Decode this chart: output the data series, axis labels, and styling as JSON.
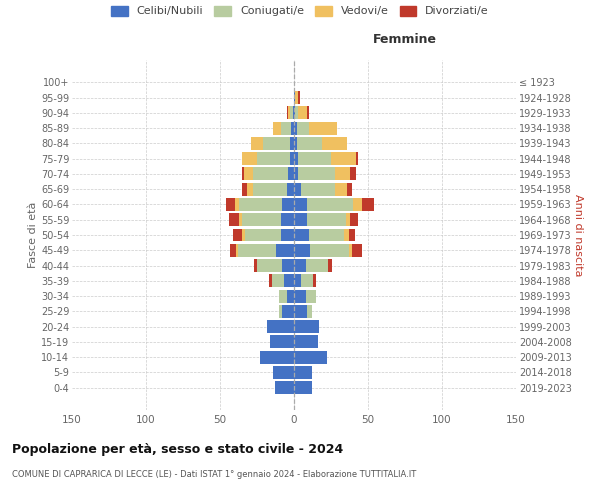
{
  "age_groups": [
    "0-4",
    "5-9",
    "10-14",
    "15-19",
    "20-24",
    "25-29",
    "30-34",
    "35-39",
    "40-44",
    "45-49",
    "50-54",
    "55-59",
    "60-64",
    "65-69",
    "70-74",
    "75-79",
    "80-84",
    "85-89",
    "90-94",
    "95-99",
    "100+"
  ],
  "birth_years": [
    "2019-2023",
    "2014-2018",
    "2009-2013",
    "2004-2008",
    "1999-2003",
    "1994-1998",
    "1989-1993",
    "1984-1988",
    "1979-1983",
    "1974-1978",
    "1969-1973",
    "1964-1968",
    "1959-1963",
    "1954-1958",
    "1949-1953",
    "1944-1948",
    "1939-1943",
    "1934-1938",
    "1929-1933",
    "1924-1928",
    "≤ 1923"
  ],
  "males": {
    "celibi": [
      13,
      14,
      23,
      16,
      18,
      8,
      5,
      7,
      8,
      12,
      9,
      9,
      8,
      5,
      4,
      3,
      3,
      2,
      1,
      0,
      0
    ],
    "coniugati": [
      0,
      0,
      0,
      0,
      0,
      2,
      5,
      8,
      17,
      26,
      24,
      26,
      29,
      23,
      24,
      22,
      18,
      7,
      2,
      0,
      0
    ],
    "vedove": [
      0,
      0,
      0,
      0,
      0,
      0,
      0,
      0,
      0,
      1,
      2,
      2,
      3,
      4,
      6,
      10,
      8,
      5,
      1,
      0,
      0
    ],
    "divorziati": [
      0,
      0,
      0,
      0,
      0,
      0,
      0,
      2,
      2,
      4,
      6,
      7,
      6,
      3,
      1,
      0,
      0,
      0,
      1,
      0,
      0
    ]
  },
  "females": {
    "nubili": [
      12,
      12,
      22,
      16,
      17,
      9,
      8,
      5,
      8,
      11,
      10,
      9,
      9,
      5,
      3,
      3,
      2,
      2,
      1,
      1,
      0
    ],
    "coniugate": [
      0,
      0,
      0,
      0,
      0,
      3,
      7,
      8,
      15,
      26,
      24,
      26,
      31,
      23,
      25,
      22,
      17,
      8,
      2,
      0,
      0
    ],
    "vedove": [
      0,
      0,
      0,
      0,
      0,
      0,
      0,
      0,
      0,
      2,
      3,
      3,
      6,
      8,
      10,
      17,
      17,
      19,
      6,
      2,
      0
    ],
    "divorziate": [
      0,
      0,
      0,
      0,
      0,
      0,
      0,
      2,
      3,
      7,
      4,
      5,
      8,
      3,
      4,
      1,
      0,
      0,
      1,
      1,
      0
    ]
  },
  "colors": {
    "celibi": "#4472c4",
    "coniugati": "#b8cca0",
    "vedove": "#f0c060",
    "divorziati": "#c0392b"
  },
  "legend_labels": [
    "Celibi/Nubili",
    "Coniugati/e",
    "Vedovi/e",
    "Divorziati/e"
  ],
  "title": "Popolazione per età, sesso e stato civile - 2024",
  "subtitle": "COMUNE DI CAPRARICA DI LECCE (LE) - Dati ISTAT 1° gennaio 2024 - Elaborazione TUTTITALIA.IT",
  "xlabel_right": "Femmine",
  "ylabel_left": "Fasce di età",
  "ylabel_right": "Anni di nascita",
  "xlim": 150,
  "bg_color": "#ffffff",
  "grid_color": "#cccccc"
}
